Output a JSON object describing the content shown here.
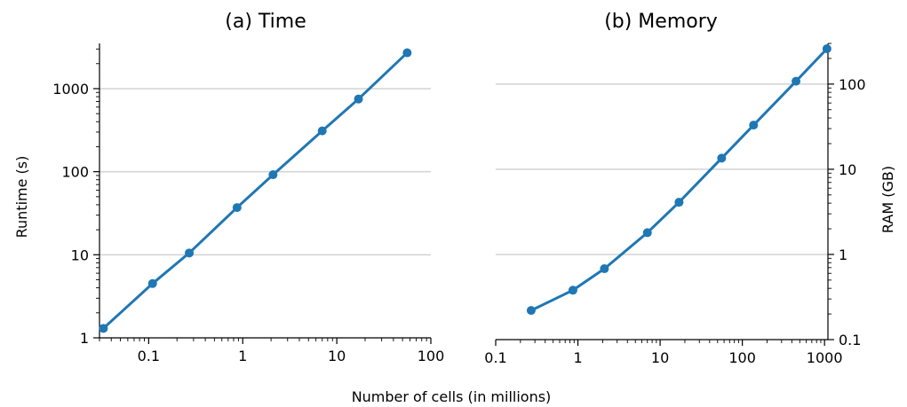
{
  "figure": {
    "shared_xlabel": "Number of cells (in millions)"
  },
  "chart_data": [
    {
      "type": "line",
      "title": "(a) Time",
      "xlabel": "Number of cells (in millions)",
      "ylabel": "Runtime (s)",
      "x_scale": "log",
      "y_scale": "log",
      "xlim": [
        0.03,
        100
      ],
      "ylim": [
        1,
        3500
      ],
      "x_ticks": [
        0.1,
        1,
        10,
        100
      ],
      "x_tick_labels": [
        "0.1",
        "1",
        "10",
        "100"
      ],
      "y_ticks": [
        1,
        10,
        100,
        1000
      ],
      "y_tick_labels": [
        "1",
        "10",
        "100",
        "1000"
      ],
      "y_axis_side": "left",
      "grid": "horizontal",
      "color": "#1f77b4",
      "x": [
        0.033,
        0.11,
        0.27,
        0.87,
        2.1,
        7,
        17,
        56
      ],
      "y": [
        1.3,
        4.5,
        10.5,
        37,
        92,
        310,
        750,
        2700
      ]
    },
    {
      "type": "line",
      "title": "(b) Memory",
      "xlabel": "Number of cells (in millions)",
      "ylabel": "RAM (GB)",
      "x_scale": "log",
      "y_scale": "log",
      "xlim": [
        0.1,
        1100
      ],
      "ylim": [
        0.1,
        300
      ],
      "x_ticks": [
        0.1,
        1,
        10,
        100,
        1000
      ],
      "x_tick_labels": [
        "0.1",
        "1",
        "10",
        "100",
        "1000"
      ],
      "y_ticks": [
        0.1,
        1,
        10,
        100
      ],
      "y_tick_labels": [
        "0.1",
        "1",
        "10",
        "100"
      ],
      "y_axis_side": "right",
      "grid": "horizontal",
      "color": "#1f77b4",
      "x": [
        0.27,
        0.87,
        2.1,
        7,
        17,
        56,
        137,
        450,
        1070
      ],
      "y": [
        0.22,
        0.38,
        0.68,
        1.8,
        4.1,
        13.5,
        33,
        108,
        260
      ]
    }
  ]
}
